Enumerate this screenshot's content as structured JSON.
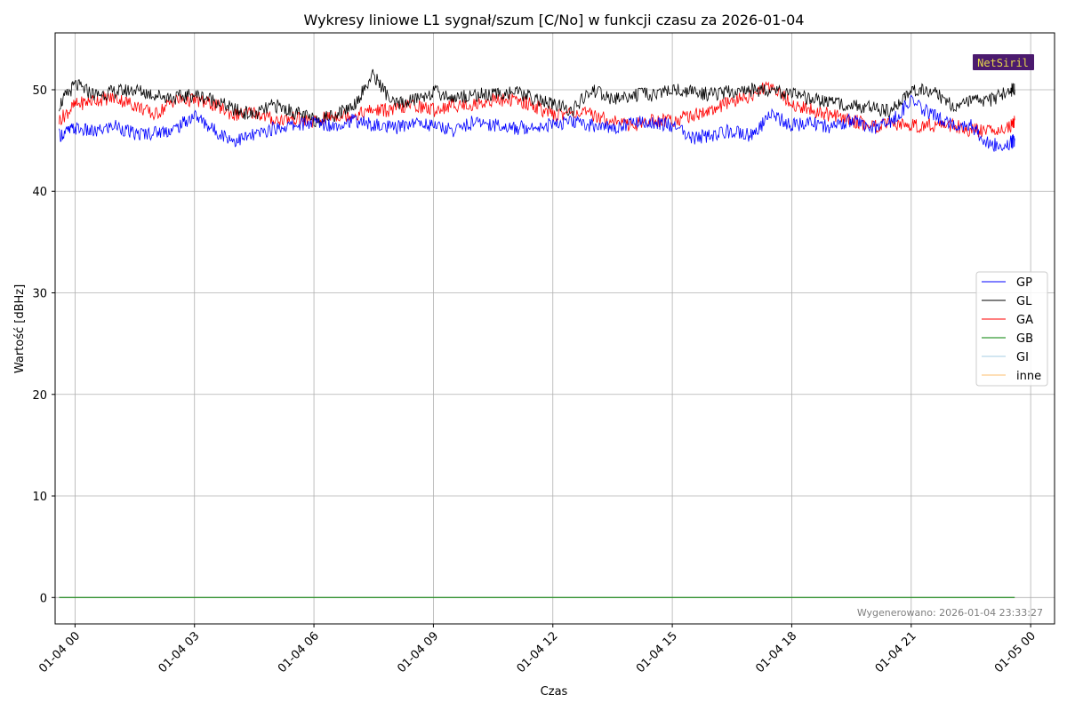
{
  "chart_data": {
    "type": "line",
    "title": "Wykresy liniowe L1 sygnał/szum [C/No] w funkcji czasu za 2026-01-04",
    "xlabel": "Czas",
    "ylabel": "Wartość [dBHz]",
    "xlim": [
      -0.5,
      24.6
    ],
    "ylim": [
      -2.6,
      55.6
    ],
    "grid": true,
    "x_ticks": [
      {
        "value": 0,
        "label": "01-04 00"
      },
      {
        "value": 3,
        "label": "01-04 03"
      },
      {
        "value": 6,
        "label": "01-04 06"
      },
      {
        "value": 9,
        "label": "01-04 09"
      },
      {
        "value": 12,
        "label": "01-04 12"
      },
      {
        "value": 15,
        "label": "01-04 15"
      },
      {
        "value": 18,
        "label": "01-04 18"
      },
      {
        "value": 21,
        "label": "01-04 21"
      },
      {
        "value": 24,
        "label": "01-05 00"
      }
    ],
    "y_ticks": [
      {
        "value": 0,
        "label": "0"
      },
      {
        "value": 10,
        "label": "10"
      },
      {
        "value": 20,
        "label": "20"
      },
      {
        "value": 30,
        "label": "30"
      },
      {
        "value": 40,
        "label": "40"
      },
      {
        "value": 50,
        "label": "50"
      }
    ],
    "x_unit": "hours since 2026-01-04 00:00",
    "legend_position": "right",
    "series": [
      {
        "name": "GP",
        "color": "#0000ff",
        "x": [
          -0.4,
          0,
          0.5,
          1,
          1.5,
          2,
          2.5,
          3,
          3.5,
          4,
          4.5,
          5,
          5.5,
          6,
          6.5,
          7,
          7.5,
          8,
          8.5,
          9,
          9.5,
          10,
          10.5,
          11,
          11.5,
          12,
          12.5,
          13,
          13.5,
          14,
          14.5,
          15,
          15.5,
          16,
          16.5,
          17,
          17.5,
          18,
          18.5,
          19,
          19.5,
          20,
          20.5,
          21,
          21.5,
          22,
          22.5,
          23,
          23.5,
          23.6
        ],
        "values": [
          45.5,
          46.2,
          45.8,
          46.5,
          45.6,
          45.8,
          46.1,
          47.5,
          46.0,
          45.0,
          45.5,
          46.2,
          46.5,
          46.8,
          46.5,
          47.0,
          46.5,
          46.2,
          46.8,
          46.5,
          46.0,
          46.8,
          46.6,
          46.2,
          46.4,
          46.6,
          46.8,
          46.5,
          46.2,
          46.8,
          46.8,
          46.5,
          45.2,
          45.5,
          46.0,
          45.5,
          47.5,
          46.5,
          46.8,
          46.3,
          47.0,
          46.2,
          46.8,
          49.0,
          47.5,
          46.8,
          46.5,
          44.5,
          44.8,
          45.0
        ]
      },
      {
        "name": "GL",
        "color": "#000000",
        "x": [
          -0.4,
          0,
          0.5,
          1,
          1.5,
          2,
          2.5,
          3,
          3.5,
          4,
          4.5,
          5,
          5.5,
          6,
          6.5,
          7,
          7.5,
          8,
          8.5,
          9,
          9.5,
          10,
          10.5,
          11,
          11.5,
          12,
          12.5,
          13,
          13.5,
          14,
          14.5,
          15,
          15.5,
          16,
          16.5,
          17,
          17.5,
          18,
          18.5,
          19,
          19.5,
          20,
          20.5,
          21,
          21.5,
          22,
          22.5,
          23,
          23.5,
          23.6
        ],
        "values": [
          48.5,
          50.5,
          49.5,
          49.8,
          50.0,
          49.5,
          49.2,
          49.5,
          49.0,
          48.0,
          47.5,
          48.5,
          47.8,
          47.0,
          47.5,
          48.5,
          51.5,
          48.5,
          49.0,
          49.8,
          49.2,
          49.5,
          49.5,
          49.8,
          49.2,
          48.5,
          48.0,
          50.0,
          49.0,
          49.5,
          49.5,
          50.0,
          49.8,
          49.5,
          49.8,
          50.0,
          50.0,
          49.5,
          49.0,
          48.8,
          48.5,
          48.2,
          47.8,
          50.0,
          50.0,
          48.5,
          48.8,
          49.0,
          50.0,
          50.0
        ]
      },
      {
        "name": "GA",
        "color": "#ff0000",
        "x": [
          -0.4,
          0,
          0.5,
          1,
          1.5,
          2,
          2.5,
          3,
          3.5,
          4,
          4.5,
          5,
          5.5,
          6,
          6.5,
          7,
          7.5,
          8,
          8.5,
          9,
          9.5,
          10,
          10.5,
          11,
          11.5,
          12,
          12.5,
          13,
          13.5,
          14,
          14.5,
          15,
          15.5,
          16,
          16.5,
          17,
          17.5,
          18,
          18.5,
          19,
          19.5,
          20,
          20.5,
          21,
          21.5,
          22,
          22.5,
          23,
          23.5,
          23.6
        ],
        "values": [
          47.0,
          48.5,
          49.0,
          49.2,
          48.5,
          47.5,
          49.0,
          49.0,
          48.5,
          47.5,
          47.8,
          47.0,
          47.2,
          46.8,
          47.5,
          47.5,
          48.0,
          48.0,
          48.5,
          48.0,
          48.5,
          48.5,
          49.0,
          49.0,
          48.5,
          47.5,
          47.8,
          47.5,
          47.0,
          46.5,
          47.0,
          47.0,
          47.5,
          48.0,
          48.8,
          49.5,
          50.5,
          48.5,
          48.0,
          47.5,
          47.0,
          46.5,
          46.5,
          46.5,
          46.5,
          46.5,
          46.0,
          46.0,
          46.5,
          47.0
        ]
      },
      {
        "name": "GB",
        "color": "#008000",
        "x": [
          -0.4,
          23.6
        ],
        "values": [
          0,
          0
        ]
      },
      {
        "name": "GI",
        "color": "#a6cee3",
        "x": [
          -0.4,
          23.6
        ],
        "values": [
          0,
          0
        ]
      },
      {
        "name": "inne",
        "color": "#fdbf6f",
        "x": [
          -0.4,
          23.6
        ],
        "values": [
          0,
          0
        ]
      }
    ]
  },
  "footer": "Wygenerowano: 2026-01-04 23:33:27",
  "logo": {
    "text": "NetSiril",
    "bg_color": "#4b1a6e",
    "fg_color": "#e6d84a"
  }
}
